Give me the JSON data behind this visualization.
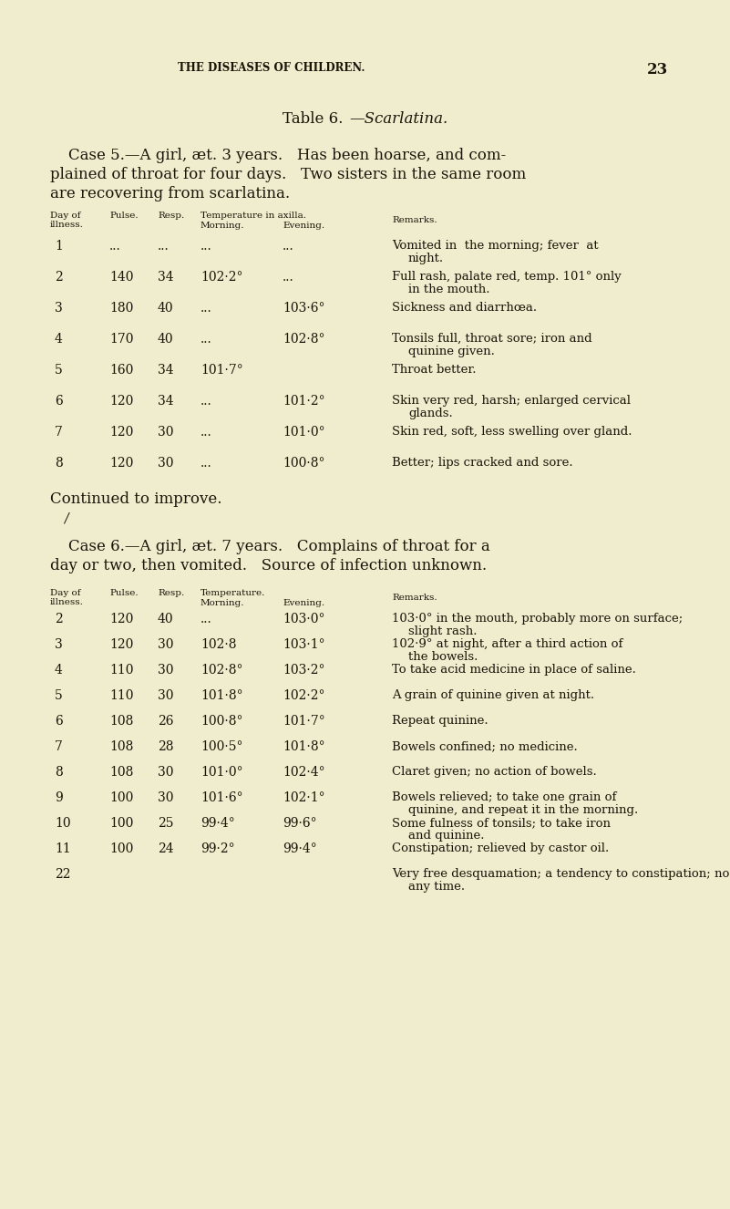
{
  "bg_color": "#f0ecce",
  "text_color": "#1a1508",
  "page_header": "THE DISEASES OF CHILDREN.",
  "page_number": "23",
  "table_title_roman": "Table 6.",
  "table_title_italic": "—Scarlatina.",
  "case5_line1": "Case 5.—A girl, æt. 3 years.   Has been hoarse, and com-",
  "case5_line2": "plained of throat for four days.   Two sisters in the same room",
  "case5_line3": "are recovering from scarlatina.",
  "case5_hdr_day": "Day of\nillness.",
  "case5_hdr_pulse": "Pulse.",
  "case5_hdr_resp": "Resp.",
  "case5_hdr_temp": "Temperature in axilla.",
  "case5_hdr_morn": "Morning.",
  "case5_hdr_eve": "Evening.",
  "case5_hdr_rem": "Remarks.",
  "case5_rows": [
    [
      "1",
      "...",
      "...",
      "...",
      "...",
      "Vomited in  the morning; fever  at\nnight."
    ],
    [
      "2",
      "140",
      "34",
      "102·2°",
      "...",
      "Full rash, palate red, temp. 101° only\nin the mouth."
    ],
    [
      "3",
      "180",
      "40",
      "...",
      "103·6°",
      "Sickness and diarrhœa."
    ],
    [
      "4",
      "170",
      "40",
      "...",
      "102·8°",
      "Tonsils full, throat sore; iron and\nquinine given."
    ],
    [
      "5",
      "160",
      "34",
      "101·7°",
      "",
      "Throat better."
    ],
    [
      "6",
      "120",
      "34",
      "...",
      "101·2°",
      "Skin very red, harsh; enlarged cervical\nglands."
    ],
    [
      "7",
      "120",
      "30",
      "...",
      "101·0°",
      "Skin red, soft, less swelling over gland."
    ],
    [
      "8",
      "120",
      "30",
      "...",
      "100·8°",
      "Better; lips cracked and sore."
    ]
  ],
  "case5_footer": "Continued to improve.",
  "case6_line1": "Case 6.—A girl, æt. 7 years.   Complains of throat for a",
  "case6_line2": "day or two, then vomited.   Source of infection unknown.",
  "case6_hdr_day": "Day of\nillness.",
  "case6_hdr_pulse": "Pulse.",
  "case6_hdr_resp": "Resp.",
  "case6_hdr_temp": "Temperature.",
  "case6_hdr_morn": "Morning.",
  "case6_hdr_eve": "Evening.",
  "case6_hdr_rem": "Remarks.",
  "case6_rows": [
    [
      "2",
      "120",
      "40",
      "...",
      "103·0°",
      "103·0° in the mouth, probably more on surface;\nslight rash."
    ],
    [
      "3",
      "120",
      "30",
      "102·8",
      "103·1°",
      "102·9° at night, after a third action of\nthe bowels."
    ],
    [
      "4",
      "110",
      "30",
      "102·8°",
      "103·2°",
      "To take acid medicine in place of saline."
    ],
    [
      "5",
      "110",
      "30",
      "101·8°",
      "102·2°",
      "A grain of quinine given at night."
    ],
    [
      "6",
      "108",
      "26",
      "100·8°",
      "101·7°",
      "Repeat quinine."
    ],
    [
      "7",
      "108",
      "28",
      "100·5°",
      "101·8°",
      "Bowels confined; no medicine."
    ],
    [
      "8",
      "108",
      "30",
      "101·0°",
      "102·4°",
      "Claret given; no action of bowels."
    ],
    [
      "9",
      "100",
      "30",
      "101·6°",
      "102·1°",
      "Bowels relieved; to take one grain of\nquinine, and repeat it in the morning."
    ],
    [
      "10",
      "100",
      "25",
      "99·4°",
      "99·6°",
      "Some fulness of tonsils; to take iron\nand quinine."
    ],
    [
      "11",
      "100",
      "24",
      "99·2°",
      "99·4°",
      "Constipation; relieved by castor oil."
    ],
    [
      "22",
      "",
      "",
      "",
      "",
      "Very free desquamation; a tendency to constipation; no albuminuria at\nany time."
    ]
  ]
}
